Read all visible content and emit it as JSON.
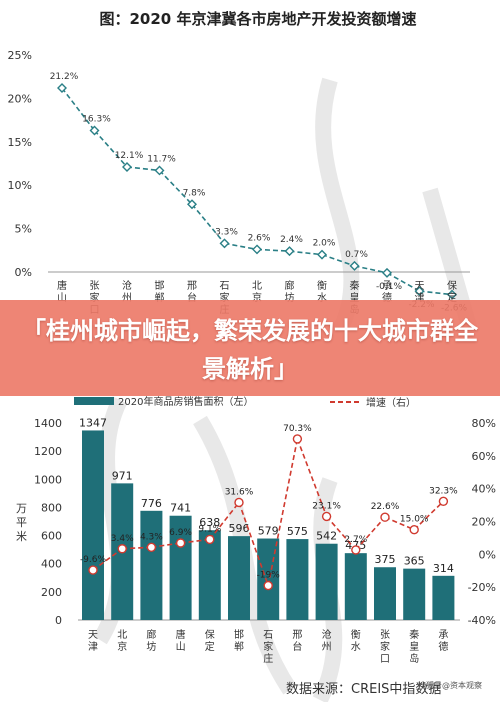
{
  "overlay": {
    "headline": "「桂州城市崛起，繁荣发展的十大城市群全景解析」"
  },
  "watermark": {
    "footer_source": "数据来源：CREIS中指数据",
    "footer_logo": "搜狐号@资本观察"
  },
  "chart_data": [
    {
      "type": "line",
      "title": "图：2020 年京津冀各市房地产开发投资额增速",
      "categories": [
        "唐山",
        "张家口",
        "沧州",
        "邯郸",
        "邢台",
        "石家庄",
        "北京",
        "廊坊",
        "衡水",
        "秦皇岛",
        "承德",
        "天津",
        "保定"
      ],
      "values": [
        21.2,
        16.3,
        12.1,
        11.7,
        7.8,
        3.3,
        2.6,
        2.4,
        2.0,
        0.7,
        -0.1,
        -2.2,
        -2.6
      ],
      "data_labels": [
        "21.2%",
        "16.3%",
        "12.1%",
        "11.7%",
        "7.8%",
        "3.3%",
        "2.6%",
        "2.4%",
        "2.0%",
        "0.7%",
        "-0.1%",
        "-2.2%",
        "-2.6%"
      ],
      "y_ticks": [
        "25%",
        "20%",
        "15%",
        "10%",
        "5%",
        "0%"
      ],
      "ylim": [
        -3,
        25
      ],
      "line_color": "#2a7f86",
      "grid": false
    },
    {
      "type": "bar",
      "legend": [
        "2020年商品房销售面积（左）",
        "增速（右）"
      ],
      "ylabel_left": "万平米",
      "categories": [
        "天津",
        "北京",
        "廊坊",
        "唐山",
        "保定",
        "邯郸",
        "石家庄",
        "邢台",
        "沧州",
        "衡水",
        "张家口",
        "秦皇岛",
        "承德"
      ],
      "series": [
        {
          "name": "2020年商品房销售面积（左）",
          "type": "bar",
          "axis": "left",
          "values": [
            1347,
            971,
            776,
            741,
            638,
            596,
            579,
            575,
            542,
            475,
            375,
            365,
            314
          ],
          "color": "#1f6f78"
        },
        {
          "name": "增速（右）",
          "type": "line",
          "axis": "right",
          "values": [
            -9.6,
            3.4,
            4.3,
            6.9,
            9.1,
            31.6,
            -19.0,
            70.3,
            23.1,
            2.7,
            22.6,
            15.0,
            32.3
          ],
          "color": "#d03a2f"
        }
      ],
      "data_labels_line": [
        "-9.6%",
        "3.4%",
        "4.3%",
        "6.9%",
        "9.1%",
        "31.6%",
        "-19%",
        "70.3%",
        "23.1%",
        "2.7%",
        "22.6%",
        "15.0%",
        "32.3%"
      ],
      "y_ticks_left": [
        "1400",
        "1200",
        "1000",
        "800",
        "600",
        "400",
        "200",
        "0"
      ],
      "y_ticks_right": [
        "80%",
        "60%",
        "40%",
        "20%",
        "0%",
        "-20%",
        "-40%"
      ],
      "ylim_left": [
        0,
        1400
      ],
      "ylim_right": [
        -40,
        80
      ],
      "grid": false
    }
  ]
}
